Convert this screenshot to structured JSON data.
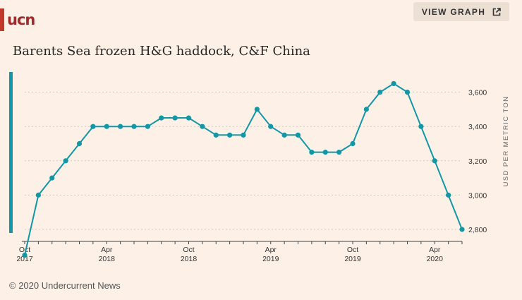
{
  "logo": {
    "text": "ucn"
  },
  "header": {
    "view_graph_label": "VIEW GRAPH",
    "view_graph_icon": "external-link-icon"
  },
  "colors": {
    "line": "#1197a6",
    "brand": "#9e2a2b",
    "grid": "#cfcac5",
    "background": "#fdf1e7"
  },
  "chart_data": {
    "type": "line",
    "title": "Barents Sea frozen H&G haddock, C&F China",
    "ylabel": "USD PER METRIC TON",
    "xlabel": "",
    "ylim": [
      2730,
      3730
    ],
    "yticks": [
      2800,
      3000,
      3200,
      3400,
      3600
    ],
    "ytick_labels": [
      "2,800",
      "3,000",
      "3,200",
      "3,400",
      "3,600"
    ],
    "x": [
      "2017-10",
      "2017-11",
      "2017-12",
      "2018-01",
      "2018-02",
      "2018-03",
      "2018-04",
      "2018-05",
      "2018-06",
      "2018-07",
      "2018-08",
      "2018-09",
      "2018-10",
      "2018-11",
      "2018-12",
      "2019-01",
      "2019-02",
      "2019-03",
      "2019-04",
      "2019-05",
      "2019-06",
      "2019-07",
      "2019-08",
      "2019-09",
      "2019-10",
      "2019-11",
      "2019-12",
      "2020-01",
      "2020-02",
      "2020-03",
      "2020-04",
      "2020-05",
      "2020-06"
    ],
    "xticks": [
      {
        "month": "2017-10",
        "line1": "Oct",
        "line2": "2017"
      },
      {
        "month": "2018-04",
        "line1": "Apr",
        "line2": "2018"
      },
      {
        "month": "2018-10",
        "line1": "Oct",
        "line2": "2018"
      },
      {
        "month": "2019-04",
        "line1": "Apr",
        "line2": "2019"
      },
      {
        "month": "2019-10",
        "line1": "Oct",
        "line2": "2019"
      },
      {
        "month": "2020-04",
        "line1": "Apr",
        "line2": "2020"
      }
    ],
    "series": [
      {
        "values": [
          2650,
          3000,
          3100,
          3200,
          3300,
          3400,
          3400,
          3400,
          3400,
          3400,
          3450,
          3450,
          3450,
          3400,
          3350,
          3350,
          3350,
          3500,
          3400,
          3350,
          3350,
          3250,
          3250,
          3250,
          3300,
          3500,
          3600,
          3650,
          3600,
          3400,
          3200,
          3000,
          2800
        ]
      }
    ]
  },
  "footer": {
    "copyright": "© 2020 Undercurrent News"
  }
}
